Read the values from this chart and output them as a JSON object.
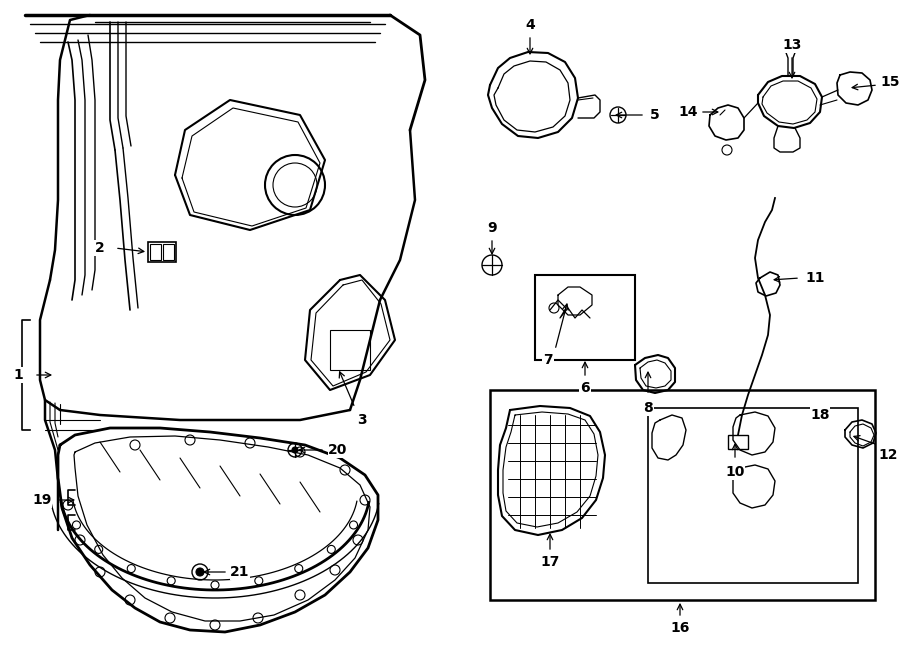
{
  "bg_color": "#ffffff",
  "line_color": "#000000",
  "fig_w": 9.0,
  "fig_h": 6.61,
  "dpi": 100
}
